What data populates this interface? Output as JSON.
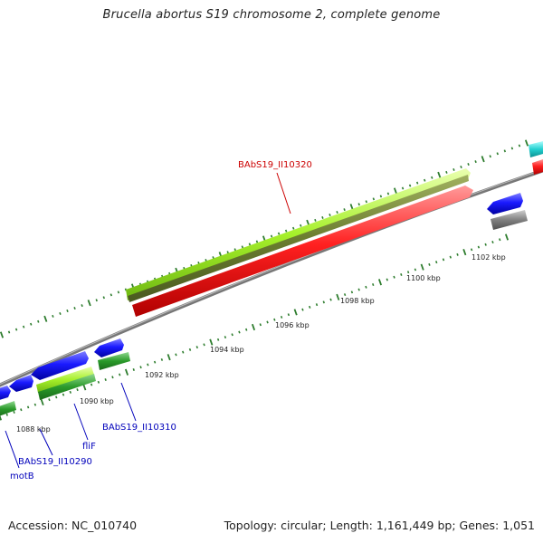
{
  "title": "Brucella abortus S19 chromosome 2, complete genome",
  "footer": {
    "accession": "Accession: NC_010740",
    "stats": "Topology: circular; Length: 1,161,449 bp; Genes: 1,051"
  },
  "scale_labels": [
    "1088 kbp",
    "1090 kbp",
    "1092 kbp",
    "1094 kbp",
    "1096 kbp",
    "1098 kbp",
    "1100 kbp",
    "1102 kbp"
  ],
  "gene_labels": {
    "g10320": "BAbS19_II10320",
    "g10310": "BAbS19_II10310",
    "g10290": "BAbS19_II10290",
    "flif": "fliF",
    "motb": "motB"
  },
  "colors": {
    "cds_forward": "#0000ee",
    "cds_reverse": "#ee0000",
    "gene_green": "#2e8b2e",
    "gene_lime": "#99ee22",
    "backbone": "#888888",
    "cyan_feature": "#11cccc",
    "tick": "#2e7d2e",
    "label_red": "#cc0000",
    "label_blue": "#0000bb"
  }
}
